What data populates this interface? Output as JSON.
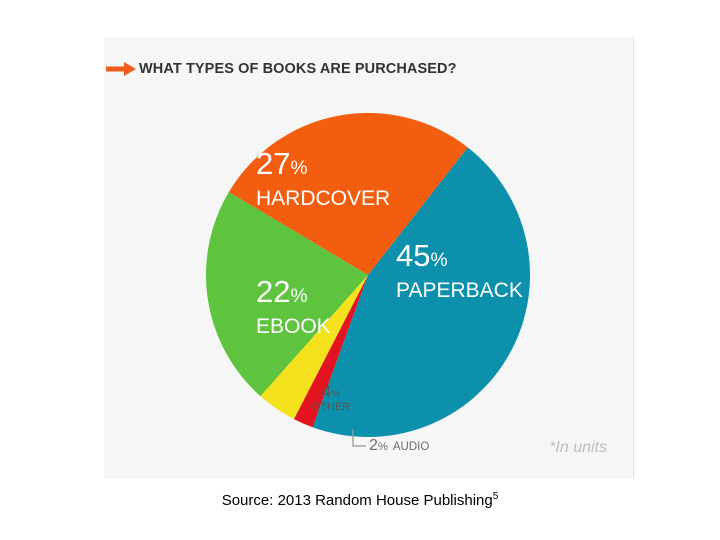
{
  "title": "WHAT TYPES OF BOOKS ARE PURCHASED?",
  "footnote": "*In units",
  "source": {
    "text": "Source: 2013 Random House Publishing",
    "superscript": "5"
  },
  "colors": {
    "accent": "#f05a1a",
    "background": "#f6f6f6"
  },
  "icons": {
    "title_marker": "arrow-right-icon"
  },
  "chart_data": {
    "type": "pie",
    "title": "WHAT TYPES OF BOOKS ARE PURCHASED?",
    "unit_note": "*In units",
    "slices": [
      {
        "label": "PAPERBACK",
        "value": 45,
        "display": "45",
        "color": "#0c90ab"
      },
      {
        "label": "AUDIO",
        "value": 2,
        "display": "2",
        "color": "#e3141f"
      },
      {
        "label": "OTHER",
        "value": 4,
        "display": "4",
        "color": "#f4e21c"
      },
      {
        "label": "EBOOK",
        "value": 22,
        "display": "22",
        "color": "#5ec43e"
      },
      {
        "label": "HARDCOVER",
        "value": 27,
        "display": "27",
        "color": "#f35d0f"
      }
    ],
    "percent_sign": "%"
  }
}
